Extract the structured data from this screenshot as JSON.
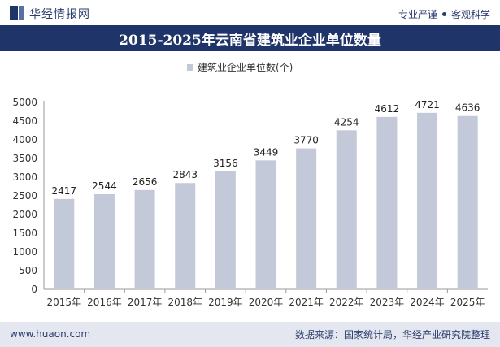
{
  "header": {
    "brand": "华经情报网",
    "tag_left": "专业严谨",
    "tag_right": "客观科学"
  },
  "footer": {
    "url": "www.huaon.com",
    "source": "数据来源：国家统计局，华经产业研究院整理"
  },
  "colors": {
    "navy": "#1f3468",
    "bar": "#c4c9da",
    "grid": "#e6e6e6",
    "axis": "#999999"
  },
  "chart_data": {
    "type": "bar",
    "title": "2015-2025年云南省建筑业企业单位数量",
    "categories": [
      "2015年",
      "2016年",
      "2017年",
      "2018年",
      "2019年",
      "2020年",
      "2021年",
      "2022年",
      "2023年",
      "2024年",
      "2025年"
    ],
    "series": [
      {
        "name": "建筑业企业单位数(个)",
        "values": [
          2417,
          2544,
          2656,
          2843,
          3156,
          3449,
          3770,
          4254,
          4612,
          4721,
          4636
        ]
      }
    ],
    "ylim": [
      0,
      5000
    ],
    "yticks": [
      0,
      500,
      1000,
      1500,
      2000,
      2500,
      3000,
      3500,
      4000,
      4500,
      5000
    ],
    "legend": "top-center",
    "grid": false
  }
}
